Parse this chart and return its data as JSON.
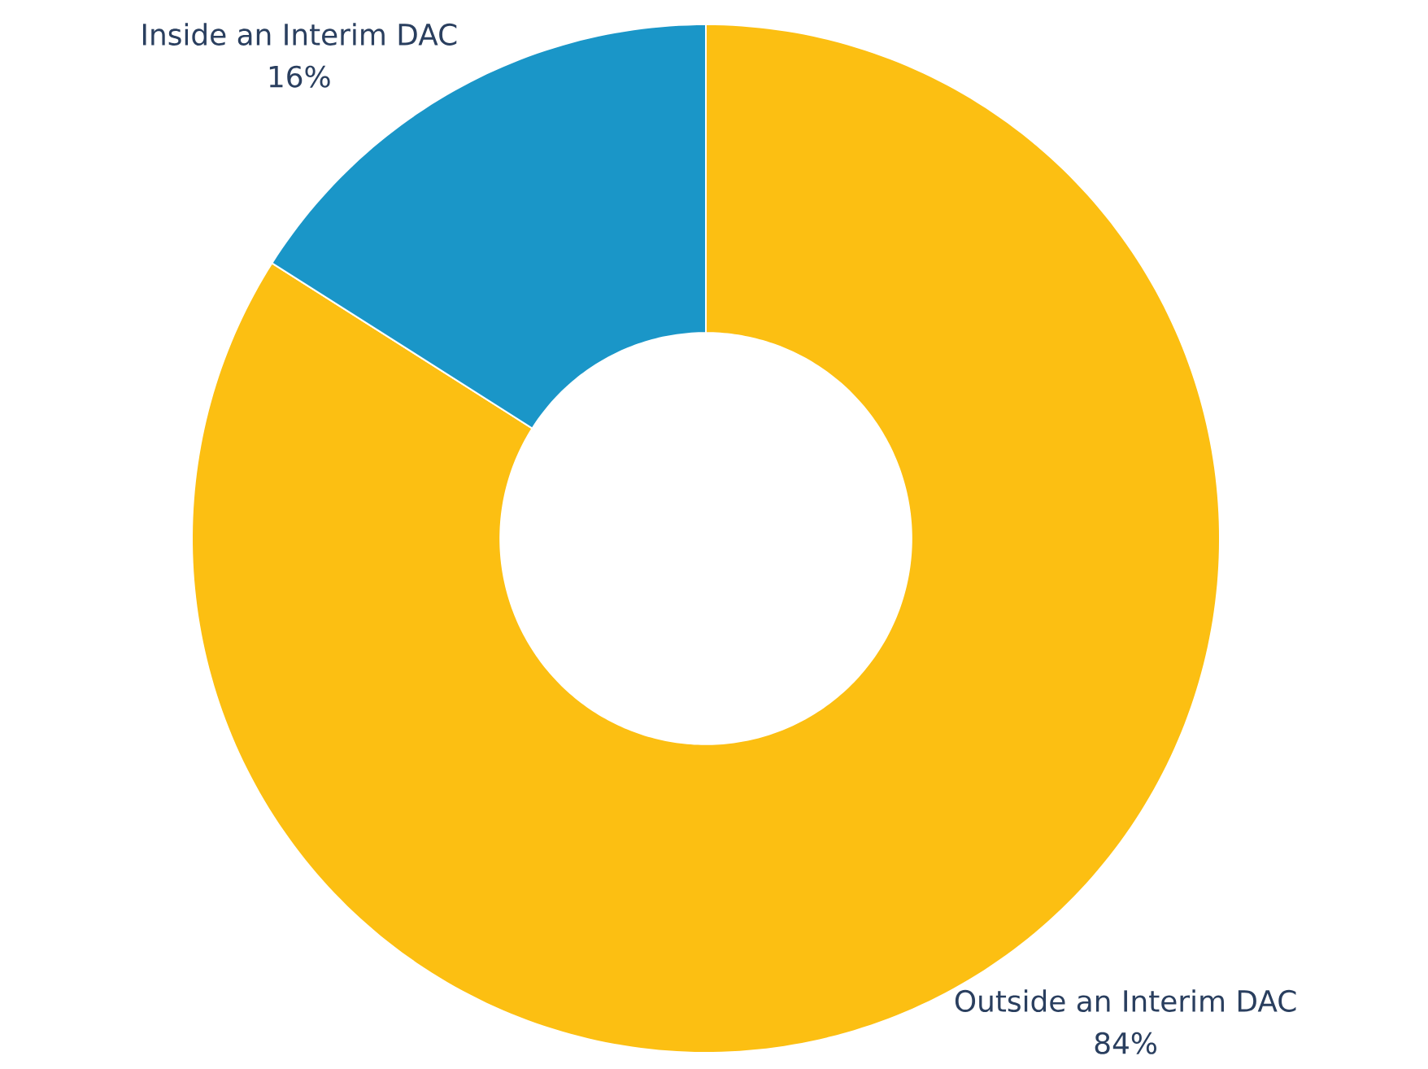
{
  "chart_data": {
    "type": "donut",
    "categories": [
      "Outside an Interim DAC",
      "Inside an Interim DAC"
    ],
    "values": [
      84,
      16
    ],
    "value_labels": [
      "84%",
      "16%"
    ],
    "colors": [
      "#fcbf12",
      "#1a96c8"
    ]
  }
}
